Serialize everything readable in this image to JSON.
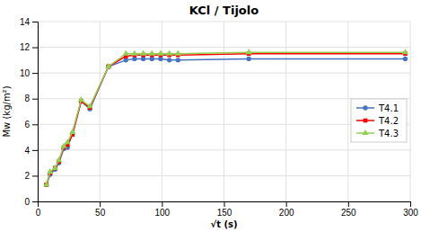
{
  "chart_data": {
    "type": "line",
    "title": "KCl / Tijolo",
    "xlabel": "√t (s)",
    "ylabel": "Mw (kg/m²)",
    "xlim": [
      0,
      300
    ],
    "ylim": [
      0,
      14
    ],
    "xticks": [
      0,
      50,
      100,
      150,
      200,
      250,
      300
    ],
    "yticks": [
      0,
      2,
      4,
      6,
      8,
      10,
      12,
      14
    ],
    "grid": true,
    "legend": "right",
    "series": [
      {
        "name": "T4.1",
        "color": "#4472C4",
        "marker": "circle",
        "x": [
          7,
          10,
          14,
          17,
          21,
          24,
          28,
          35,
          42,
          57,
          71,
          78,
          85,
          92,
          99,
          106,
          113,
          170,
          296
        ],
        "values": [
          1.3,
          2.1,
          2.5,
          3.0,
          4.1,
          4.2,
          5.3,
          7.8,
          7.2,
          10.5,
          11.0,
          11.1,
          11.1,
          11.1,
          11.1,
          11.0,
          11.0,
          11.1,
          11.1
        ]
      },
      {
        "name": "T4.2",
        "color": "#FF0000",
        "marker": "square",
        "x": [
          7,
          10,
          14,
          17,
          21,
          24,
          28,
          35,
          42,
          57,
          71,
          78,
          85,
          92,
          99,
          106,
          113,
          170,
          296
        ],
        "values": [
          1.3,
          2.2,
          2.6,
          3.1,
          4.2,
          4.4,
          5.2,
          7.8,
          7.3,
          10.5,
          11.3,
          11.4,
          11.4,
          11.4,
          11.4,
          11.4,
          11.4,
          11.5,
          11.5
        ]
      },
      {
        "name": "T4.3",
        "color": "#92D050",
        "marker": "triangle",
        "x": [
          7,
          10,
          14,
          17,
          21,
          24,
          28,
          35,
          42,
          57,
          71,
          78,
          85,
          92,
          99,
          106,
          113,
          170,
          296
        ],
        "values": [
          1.3,
          2.3,
          2.6,
          3.2,
          4.3,
          4.6,
          5.4,
          7.9,
          7.4,
          10.5,
          11.5,
          11.5,
          11.5,
          11.5,
          11.5,
          11.5,
          11.5,
          11.6,
          11.6
        ]
      }
    ]
  }
}
